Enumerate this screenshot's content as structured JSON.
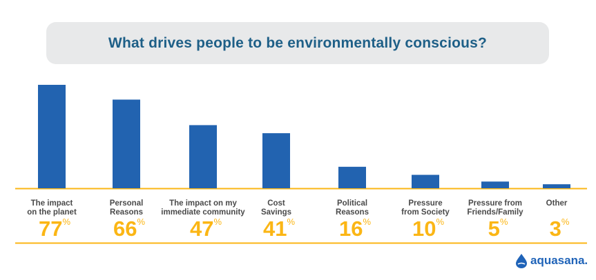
{
  "chart_data": {
    "type": "bar",
    "title": "What drives people to be environmentally conscious?",
    "categories": [
      [
        "The impact",
        "on the planet"
      ],
      [
        "Personal",
        "Reasons"
      ],
      [
        "The impact on my",
        "immediate community"
      ],
      [
        "Cost",
        "Savings"
      ],
      [
        "Political",
        "Reasons"
      ],
      [
        "Pressure",
        "from Society"
      ],
      [
        "Pressure from",
        "Friends/Family"
      ],
      [
        "Other"
      ]
    ],
    "values": [
      77,
      66,
      47,
      41,
      16,
      10,
      5,
      3
    ],
    "unit": "%",
    "ylim": [
      0,
      77
    ],
    "grid": false,
    "colors": {
      "bar": "#2263b0",
      "accent": "#fbb615",
      "title": "#1e5f87"
    }
  },
  "brand": {
    "logo_text": "aquasana."
  }
}
